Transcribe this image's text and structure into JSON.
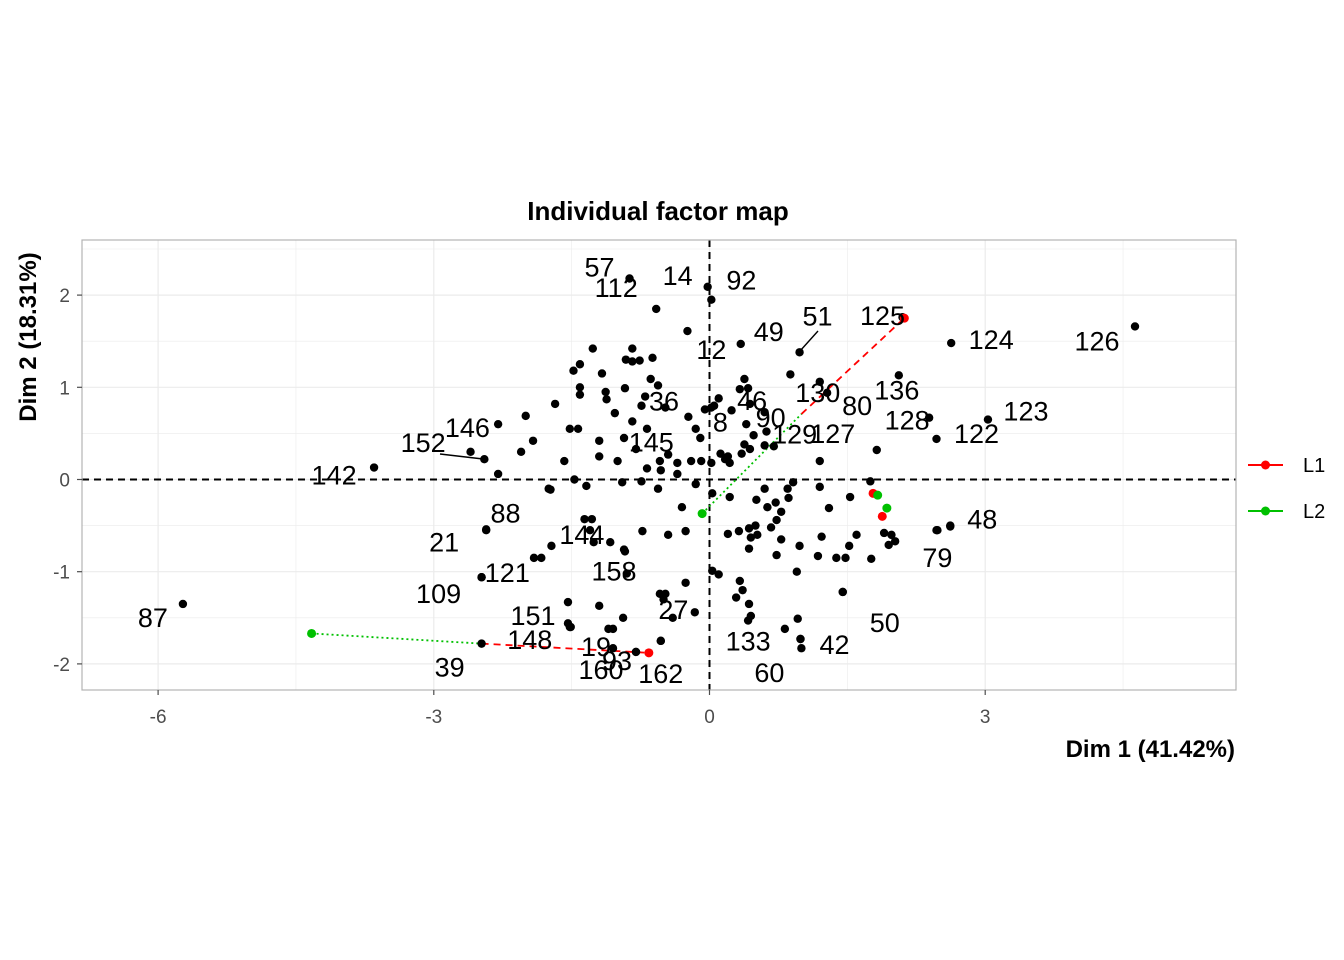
{
  "chart_data": {
    "type": "scatter",
    "title": "Individual factor map",
    "xlabel": "Dim 1 (41.42%)",
    "ylabel": "Dim 2 (18.31%)",
    "xlim": [
      -6.85,
      5.6
    ],
    "ylim": [
      -2.3,
      2.6
    ],
    "xticks": [
      -6,
      -3,
      0,
      3
    ],
    "yticks": [
      -2,
      -1,
      0,
      1,
      2
    ],
    "grid": true,
    "reference_lines": [
      0,
      0
    ],
    "legend_position": "right",
    "colors": {
      "points": "#000000",
      "L1": "#ff0000",
      "L2": "#00c000",
      "grid": "#e5e5e5",
      "panel_border": "#b3b3b3"
    },
    "labeled_points": [
      {
        "label": "57",
        "x": -0.87,
        "y": 2.18
      },
      {
        "label": "14",
        "x": -0.02,
        "y": 2.09
      },
      {
        "label": "92",
        "x": 0.02,
        "y": 1.95
      },
      {
        "label": "112",
        "x": -0.58,
        "y": 1.85
      },
      {
        "label": "12",
        "x": -0.24,
        "y": 1.61
      },
      {
        "label": "49",
        "x": 0.34,
        "y": 1.47
      },
      {
        "label": "51",
        "x": 0.98,
        "y": 1.38
      },
      {
        "label": "125",
        "x": 2.1,
        "y": 1.76
      },
      {
        "label": "124",
        "x": 2.63,
        "y": 1.48
      },
      {
        "label": "126",
        "x": 4.63,
        "y": 1.66
      },
      {
        "label": "36",
        "x": -0.56,
        "y": 1.02
      },
      {
        "label": "46",
        "x": 0.42,
        "y": 0.99
      },
      {
        "label": "130",
        "x": 1.2,
        "y": 1.06
      },
      {
        "label": "136",
        "x": 2.06,
        "y": 1.13
      },
      {
        "label": "8",
        "x": 0.02,
        "y": 0.78
      },
      {
        "label": "90",
        "x": 0.6,
        "y": 0.73
      },
      {
        "label": "80",
        "x": 1.28,
        "y": 0.94
      },
      {
        "label": "128",
        "x": 2.39,
        "y": 0.67
      },
      {
        "label": "123",
        "x": 3.03,
        "y": 0.65
      },
      {
        "label": "129",
        "x": 0.6,
        "y": 0.37
      },
      {
        "label": "146",
        "x": -2.45,
        "y": 0.22
      },
      {
        "label": "152",
        "x": -2.3,
        "y": 0.06
      },
      {
        "label": "145",
        "x": -1.2,
        "y": 0.25
      },
      {
        "label": "127",
        "x": 1.82,
        "y": 0.32
      },
      {
        "label": "122",
        "x": 2.47,
        "y": 0.44
      },
      {
        "label": "142",
        "x": -3.65,
        "y": 0.13
      },
      {
        "label": "88",
        "x": -1.73,
        "y": -0.11
      },
      {
        "label": "48",
        "x": 2.62,
        "y": -0.51
      },
      {
        "label": "21",
        "x": -2.43,
        "y": -0.54
      },
      {
        "label": "144",
        "x": -1.28,
        "y": -0.43
      },
      {
        "label": "121",
        "x": -1.83,
        "y": -0.85
      },
      {
        "label": "158",
        "x": -0.93,
        "y": -0.76
      },
      {
        "label": "79",
        "x": 2.48,
        "y": -0.55
      },
      {
        "label": "109",
        "x": -2.48,
        "y": -1.06
      },
      {
        "label": "151",
        "x": -1.54,
        "y": -1.33
      },
      {
        "label": "50",
        "x": 1.45,
        "y": -1.22
      },
      {
        "label": "27",
        "x": -0.48,
        "y": -1.24
      },
      {
        "label": "87",
        "x": -5.73,
        "y": -1.35
      },
      {
        "label": "148",
        "x": -1.52,
        "y": -1.6
      },
      {
        "label": "19",
        "x": -1.05,
        "y": -1.62
      },
      {
        "label": "133",
        "x": 0.42,
        "y": -1.53
      },
      {
        "label": "42",
        "x": 0.99,
        "y": -1.73
      },
      {
        "label": "39",
        "x": -2.48,
        "y": -1.78
      },
      {
        "label": "160",
        "x": -1.05,
        "y": -1.83
      },
      {
        "label": "93",
        "x": -0.8,
        "y": -1.87
      },
      {
        "label": "162",
        "x": -0.53,
        "y": -1.75
      },
      {
        "label": "60",
        "x": 1.0,
        "y": -1.83
      }
    ],
    "unlabeled_points": [
      [
        -0.84,
        1.28
      ],
      [
        -0.76,
        1.29
      ],
      [
        -0.91,
        1.3
      ],
      [
        -0.84,
        1.42
      ],
      [
        -1.27,
        1.42
      ],
      [
        -1.41,
        1.25
      ],
      [
        -1.48,
        1.18
      ],
      [
        -0.62,
        1.32
      ],
      [
        -0.64,
        1.09
      ],
      [
        -1.17,
        1.15
      ],
      [
        -0.92,
        0.99
      ],
      [
        -1.41,
        1.0
      ],
      [
        -1.13,
        0.95
      ],
      [
        -1.12,
        0.87
      ],
      [
        -0.74,
        0.8
      ],
      [
        -0.48,
        0.78
      ],
      [
        -0.23,
        0.68
      ],
      [
        -0.05,
        0.76
      ],
      [
        0.05,
        0.8
      ],
      [
        0.24,
        0.75
      ],
      [
        0.44,
        0.82
      ],
      [
        0.33,
        0.98
      ],
      [
        0.88,
        1.14
      ],
      [
        0.38,
        1.09
      ],
      [
        0.1,
        0.88
      ],
      [
        -1.68,
        0.82
      ],
      [
        -1.41,
        0.92
      ],
      [
        -1.03,
        0.72
      ],
      [
        -0.84,
        0.63
      ],
      [
        -0.68,
        0.55
      ],
      [
        -0.15,
        0.55
      ],
      [
        -0.1,
        0.45
      ],
      [
        0.12,
        0.28
      ],
      [
        0.02,
        0.18
      ],
      [
        0.22,
        0.18
      ],
      [
        0.38,
        0.38
      ],
      [
        0.44,
        0.33
      ],
      [
        0.48,
        0.48
      ],
      [
        0.62,
        0.52
      ],
      [
        0.7,
        0.36
      ],
      [
        0.35,
        0.28
      ],
      [
        0.17,
        0.22
      ],
      [
        0.2,
        0.25
      ],
      [
        -0.09,
        0.2
      ],
      [
        -0.35,
        0.18
      ],
      [
        -0.68,
        0.12
      ],
      [
        -0.54,
        0.2
      ],
      [
        -0.45,
        0.27
      ],
      [
        -0.8,
        0.33
      ],
      [
        -0.93,
        0.45
      ],
      [
        -1.2,
        0.42
      ],
      [
        -1.52,
        0.55
      ],
      [
        -1.43,
        0.55
      ],
      [
        -1.58,
        0.2
      ],
      [
        -1.92,
        0.42
      ],
      [
        -2.05,
        0.3
      ],
      [
        -2.6,
        0.3
      ],
      [
        -2.3,
        0.6
      ],
      [
        -2.0,
        0.69
      ],
      [
        -1.47,
        0.0
      ],
      [
        -1.34,
        -0.07
      ],
      [
        -1.75,
        -0.1
      ],
      [
        -0.74,
        -0.02
      ],
      [
        -0.53,
        0.1
      ],
      [
        -0.35,
        0.06
      ],
      [
        -0.95,
        -0.03
      ],
      [
        -0.56,
        -0.1
      ],
      [
        -0.15,
        -0.05
      ],
      [
        0.03,
        -0.15
      ],
      [
        0.22,
        -0.19
      ],
      [
        0.51,
        -0.22
      ],
      [
        0.63,
        -0.3
      ],
      [
        0.72,
        -0.25
      ],
      [
        0.85,
        -0.1
      ],
      [
        0.91,
        -0.03
      ],
      [
        1.2,
        -0.08
      ],
      [
        1.3,
        -0.31
      ],
      [
        1.53,
        -0.19
      ],
      [
        1.75,
        -0.02
      ],
      [
        0.78,
        -0.35
      ],
      [
        0.67,
        -0.52
      ],
      [
        0.73,
        -0.44
      ],
      [
        0.86,
        -0.2
      ],
      [
        0.5,
        -0.5
      ],
      [
        0.43,
        -0.53
      ],
      [
        0.32,
        -0.56
      ],
      [
        0.45,
        -0.63
      ],
      [
        0.2,
        -0.59
      ],
      [
        0.43,
        -0.75
      ],
      [
        0.52,
        -0.6
      ],
      [
        0.73,
        -0.82
      ],
      [
        0.98,
        -0.72
      ],
      [
        0.78,
        -0.65
      ],
      [
        1.22,
        -0.62
      ],
      [
        1.18,
        -0.83
      ],
      [
        1.38,
        -0.85
      ],
      [
        1.6,
        -0.6
      ],
      [
        1.52,
        -0.72
      ],
      [
        1.48,
        -0.85
      ],
      [
        1.76,
        -0.86
      ],
      [
        1.9,
        -0.58
      ],
      [
        1.98,
        -0.6
      ],
      [
        1.95,
        -0.71
      ],
      [
        2.02,
        -0.67
      ],
      [
        -0.26,
        -0.56
      ],
      [
        -0.45,
        -0.6
      ],
      [
        -0.73,
        -0.56
      ],
      [
        -1.08,
        -0.68
      ],
      [
        -0.92,
        -0.78
      ],
      [
        -1.26,
        -0.68
      ],
      [
        -1.3,
        -0.55
      ],
      [
        -1.36,
        -0.43
      ],
      [
        -1.72,
        -0.72
      ],
      [
        -1.91,
        -0.85
      ],
      [
        -2.43,
        -0.55
      ],
      [
        -0.9,
        -1.02
      ],
      [
        -0.54,
        -1.24
      ],
      [
        -0.5,
        -1.3
      ],
      [
        -0.16,
        -1.44
      ],
      [
        -0.26,
        -1.12
      ],
      [
        0.03,
        -0.99
      ],
      [
        0.1,
        -1.03
      ],
      [
        0.33,
        -1.1
      ],
      [
        0.36,
        -1.2
      ],
      [
        0.43,
        -1.35
      ],
      [
        0.29,
        -1.28
      ],
      [
        0.95,
        -1.0
      ],
      [
        1.45,
        -1.22
      ],
      [
        -1.2,
        -1.37
      ],
      [
        -1.54,
        -1.56
      ],
      [
        -1.51,
        -1.6
      ],
      [
        -1.1,
        -1.62
      ],
      [
        -0.94,
        -1.5
      ],
      [
        -0.4,
        -1.5
      ],
      [
        -0.53,
        -1.75
      ],
      [
        0.99,
        -1.73
      ],
      [
        0.45,
        -1.48
      ],
      [
        0.82,
        -1.62
      ],
      [
        2.47,
        -0.55
      ],
      [
        2.62,
        -0.5
      ],
      [
        -0.8,
        -1.87
      ],
      [
        -2.48,
        -1.06
      ],
      [
        0.96,
        -1.51
      ],
      [
        -0.2,
        0.2
      ],
      [
        0.4,
        0.6
      ],
      [
        -1.0,
        0.2
      ],
      [
        -0.3,
        -0.3
      ],
      [
        0.6,
        -0.1
      ],
      [
        1.2,
        0.2
      ],
      [
        -0.7,
        0.9
      ]
    ],
    "series": [
      {
        "name": "L1",
        "points": [
          [
            -0.66,
            -1.88
          ],
          [
            1.78,
            -0.15
          ],
          [
            1.88,
            -0.4
          ],
          [
            2.12,
            1.75
          ]
        ]
      },
      {
        "name": "L2",
        "points": [
          [
            -4.33,
            -1.67
          ],
          [
            -0.08,
            -0.37
          ],
          [
            1.83,
            -0.17
          ],
          [
            1.93,
            -0.31
          ]
        ]
      }
    ],
    "segments": [
      {
        "series": "L1",
        "style": "dashed",
        "from": [
          -2.48,
          -1.78
        ],
        "to": [
          -0.66,
          -1.88
        ]
      },
      {
        "series": "L1",
        "style": "dashed",
        "from": [
          1.0,
          0.71
        ],
        "to": [
          2.12,
          1.75
        ]
      },
      {
        "series": "L2",
        "style": "dotted",
        "from": [
          -4.33,
          -1.67
        ],
        "to": [
          -2.48,
          -1.78
        ]
      },
      {
        "series": "L2",
        "style": "dotted",
        "from": [
          -0.08,
          -0.37
        ],
        "to": [
          1.0,
          0.71
        ]
      }
    ]
  }
}
